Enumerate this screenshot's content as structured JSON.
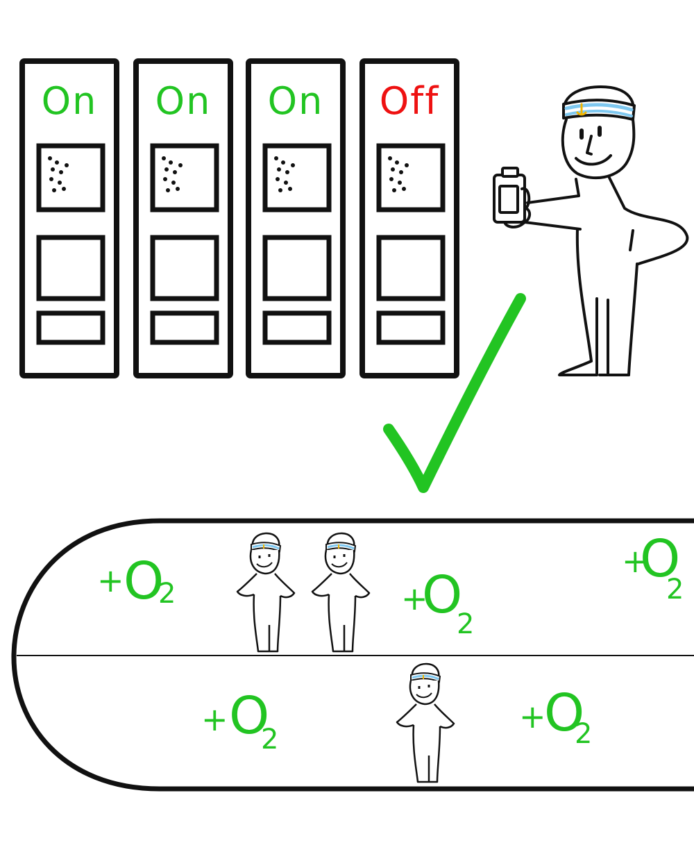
{
  "colors": {
    "on": "#22c422",
    "off": "#ee1111",
    "ink": "#111111",
    "o2": "#22c422",
    "check": "#22c422",
    "headband_blue": "#7ec8f0",
    "anchor": "#f0b400"
  },
  "servers": [
    {
      "status": "On",
      "state": "on"
    },
    {
      "status": "On",
      "state": "on"
    },
    {
      "status": "On",
      "state": "on"
    },
    {
      "status": "Off",
      "state": "off"
    }
  ],
  "oxygen_labels": [
    {
      "plus": "+",
      "element": "O",
      "subscript": "2"
    },
    {
      "plus": "+",
      "element": "O",
      "subscript": "2"
    },
    {
      "plus": "+",
      "element": "O",
      "subscript": "2"
    },
    {
      "plus": "+",
      "element": "O",
      "subscript": "2"
    },
    {
      "plus": "+",
      "element": "O",
      "subscript": "2"
    }
  ],
  "icons": {
    "operator": "sailor-figure-icon",
    "device": "handheld-device-icon",
    "checkmark": "checkmark-icon",
    "track": "oval-track-icon",
    "walker": "small-sailor-figure-icon"
  }
}
